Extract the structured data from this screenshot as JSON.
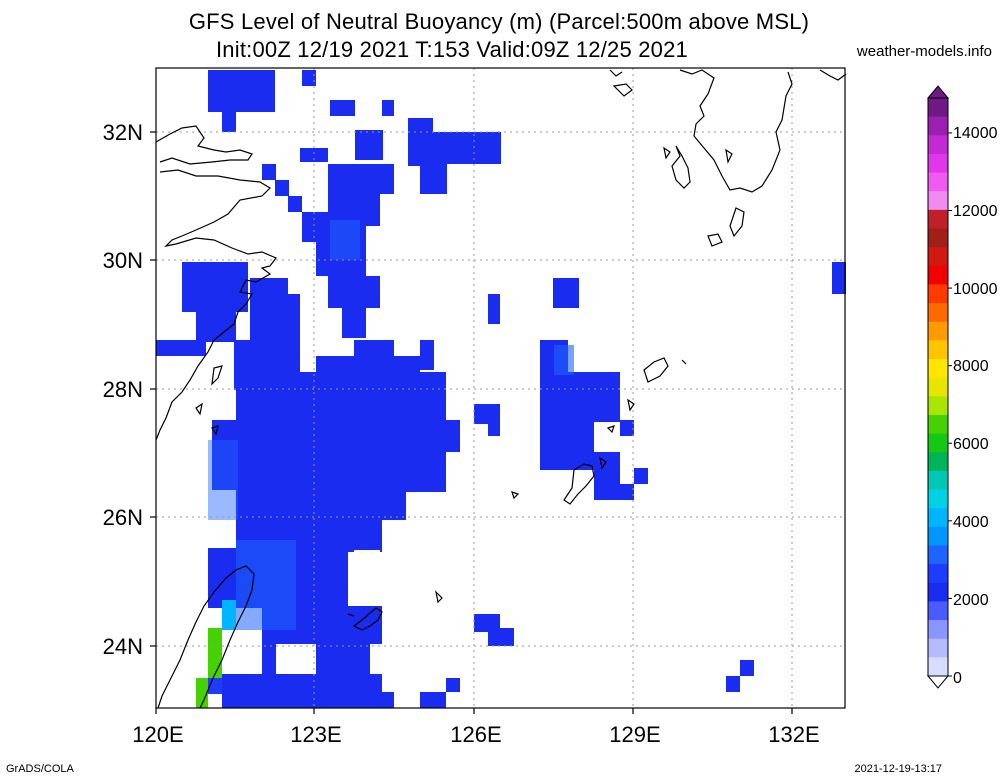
{
  "header": {
    "title_line1": "GFS Level of Neutral Buoyancy (m) (Parcel:500m above MSL)",
    "title_line2": "Init:00Z 12/19 2021 T:153 Valid:09Z 12/25 2021",
    "brand": "weather-models.info"
  },
  "map": {
    "lat_labels": [
      "32N",
      "30N",
      "28N",
      "26N",
      "24N"
    ],
    "lon_labels": [
      "120E",
      "123E",
      "126E",
      "129E",
      "132E"
    ],
    "fill_color": "#1a2cf0",
    "coast_color": "#000000",
    "grid_color": "#9a9a9a"
  },
  "colorbar": {
    "labels": [
      "14000",
      "12000",
      "10000",
      "8000",
      "6000",
      "4000",
      "2000",
      "0"
    ],
    "colors": [
      "#6e1a82",
      "#9b1fb0",
      "#c22ad4",
      "#e038e8",
      "#f05af0",
      "#f08cf0",
      "#c0202a",
      "#a02018",
      "#d01a10",
      "#f00000",
      "#ff3a00",
      "#ff6a00",
      "#ff9a00",
      "#ffc400",
      "#ffe600",
      "#e6e600",
      "#a8e600",
      "#46d200",
      "#14c814",
      "#00b45a",
      "#00c8b4",
      "#00d2e6",
      "#00b4ff",
      "#0096ff",
      "#1e64ff",
      "#1e3cff",
      "#1a2cf0",
      "#4a5cff",
      "#8a96ff",
      "#b4bcff",
      "#d8dcff"
    ]
  },
  "footer": {
    "left": "GrADS/COLA",
    "right": "2021-12-19-13:17"
  }
}
